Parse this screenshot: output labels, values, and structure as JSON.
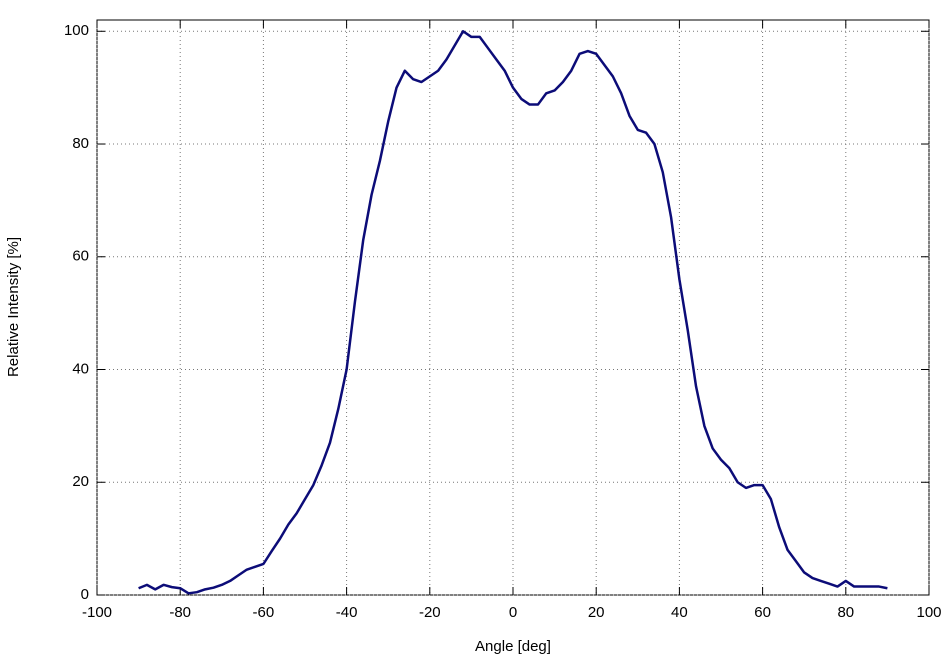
{
  "chart_data": {
    "type": "line",
    "xlabel": "Angle [deg]",
    "ylabel": "Relative Intensity [%]",
    "x": [
      -90,
      -88,
      -86,
      -84,
      -82,
      -80,
      -78,
      -76,
      -74,
      -72,
      -70,
      -68,
      -66,
      -64,
      -62,
      -60,
      -58,
      -56,
      -54,
      -52,
      -50,
      -48,
      -46,
      -44,
      -42,
      -40,
      -38,
      -36,
      -34,
      -32,
      -30,
      -28,
      -26,
      -24,
      -22,
      -20,
      -18,
      -16,
      -14,
      -12,
      -10,
      -8,
      -6,
      -4,
      -2,
      0,
      2,
      4,
      6,
      8,
      10,
      12,
      14,
      16,
      18,
      20,
      22,
      24,
      26,
      28,
      30,
      32,
      34,
      36,
      38,
      40,
      42,
      44,
      46,
      48,
      50,
      52,
      54,
      56,
      58,
      60,
      62,
      64,
      66,
      68,
      70,
      72,
      74,
      76,
      78,
      80,
      82,
      84,
      86,
      88,
      90
    ],
    "series": [
      {
        "name": "intensity",
        "color": "#0c0c78",
        "values": [
          1.2,
          1.8,
          1.0,
          1.8,
          1.4,
          1.2,
          0.3,
          0.5,
          1.0,
          1.3,
          1.8,
          2.5,
          3.5,
          4.5,
          5.0,
          5.5,
          7.8,
          10,
          12.5,
          14.5,
          17,
          19.5,
          23,
          27,
          33,
          40,
          52,
          63,
          71,
          77,
          84,
          90,
          93,
          91.5,
          91,
          92,
          93,
          95,
          97.5,
          100,
          99,
          99,
          97,
          95,
          93,
          90,
          88,
          87,
          87,
          89,
          89.5,
          91,
          93,
          96,
          96.5,
          96,
          94,
          92,
          89,
          85,
          82.5,
          82,
          80,
          75,
          67,
          56,
          47,
          37,
          30,
          26,
          24,
          22.5,
          20,
          19,
          19.5,
          19.5,
          17,
          12,
          8,
          6,
          4,
          3,
          2.5,
          2,
          1.5,
          2.5,
          1.5,
          1.5,
          1.5,
          1.5,
          1.2
        ]
      }
    ],
    "xlim": [
      -100,
      100
    ],
    "xticks": [
      -100,
      -80,
      -60,
      -40,
      -20,
      0,
      20,
      40,
      60,
      80,
      100
    ],
    "ylim": [
      0,
      102
    ],
    "yticks": [
      0,
      20,
      40,
      60,
      80,
      100
    ],
    "grid": true
  }
}
